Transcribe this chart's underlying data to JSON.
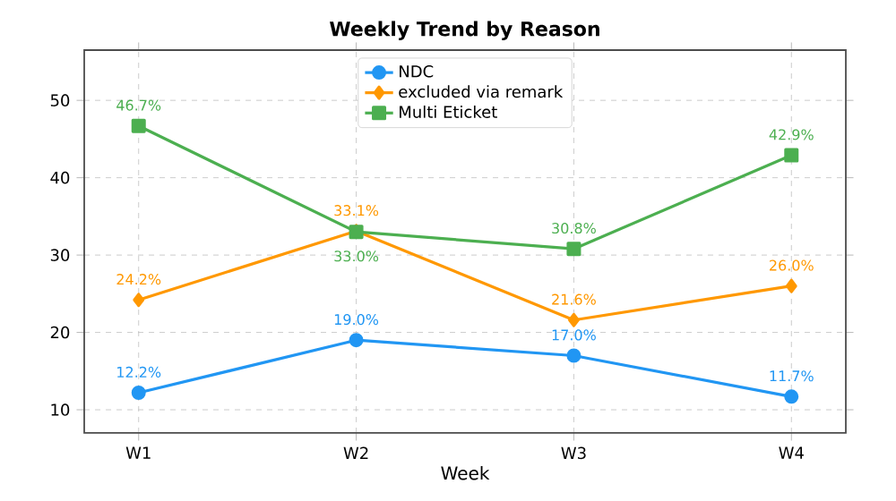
{
  "chart_data": {
    "type": "line",
    "title": "Weekly Trend by Reason",
    "xlabel": "Week",
    "categories": [
      "W1",
      "W2",
      "W3",
      "W4"
    ],
    "series": [
      {
        "name": "NDC",
        "color": "#2196f3",
        "marker": "circle",
        "values": [
          12.2,
          19.0,
          17.0,
          11.7
        ],
        "value_labels": [
          "12.2%",
          "19.0%",
          "17.0%",
          "11.7%"
        ]
      },
      {
        "name": "excluded via remark",
        "color": "#ff9800",
        "marker": "diamond",
        "values": [
          24.2,
          33.1,
          21.6,
          26.0
        ],
        "value_labels": [
          "24.2%",
          "33.1%",
          "21.6%",
          "26.0%"
        ]
      },
      {
        "name": "Multi Eticket",
        "color": "#4caf50",
        "marker": "square",
        "values": [
          46.7,
          33.0,
          30.8,
          42.9
        ],
        "value_labels": [
          "46.7%",
          "33.0%",
          "30.8%",
          "42.9%"
        ]
      }
    ],
    "ylim": [
      7,
      56.5
    ],
    "yticks": [
      10,
      20,
      30,
      40,
      50
    ],
    "grid": true,
    "legend": "top",
    "line_style": "solid"
  }
}
